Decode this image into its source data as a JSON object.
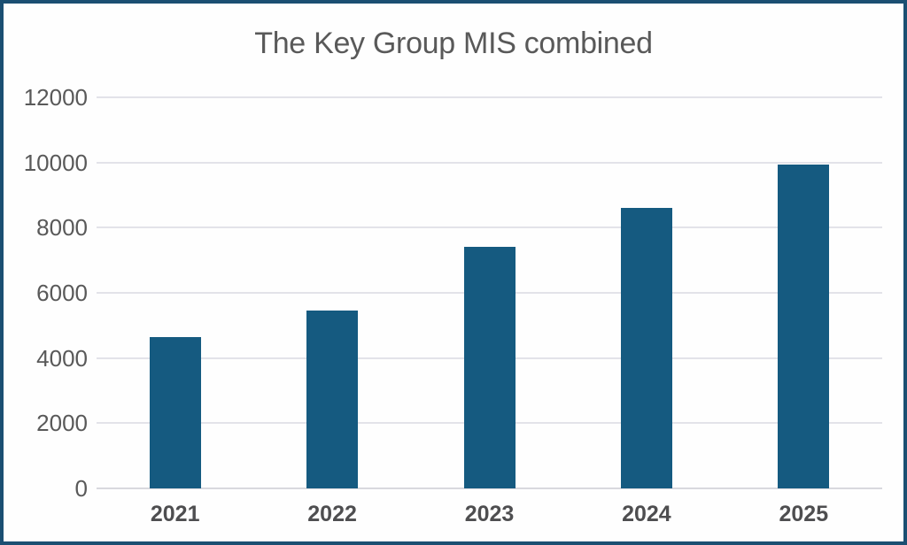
{
  "frame": {
    "background": "#FEFEFE",
    "border_color": "#1B4F72"
  },
  "chart_data": {
    "type": "bar",
    "title": "The Key Group MIS combined",
    "categories": [
      "2021",
      "2022",
      "2023",
      "2024",
      "2025"
    ],
    "values": [
      4650,
      5450,
      7400,
      8600,
      9950
    ],
    "xlabel": "",
    "ylabel": "",
    "ylim": [
      0,
      12000
    ],
    "yticks": [
      0,
      2000,
      4000,
      6000,
      8000,
      10000,
      12000
    ],
    "grid": true,
    "legend": false,
    "bar_color": "#155A80",
    "gridline_color": "#E3E3E9",
    "baseline_color": "#D8D8DE",
    "title_color": "#595959",
    "ytick_color": "#595959",
    "xtick_color": "#4E4E50"
  }
}
